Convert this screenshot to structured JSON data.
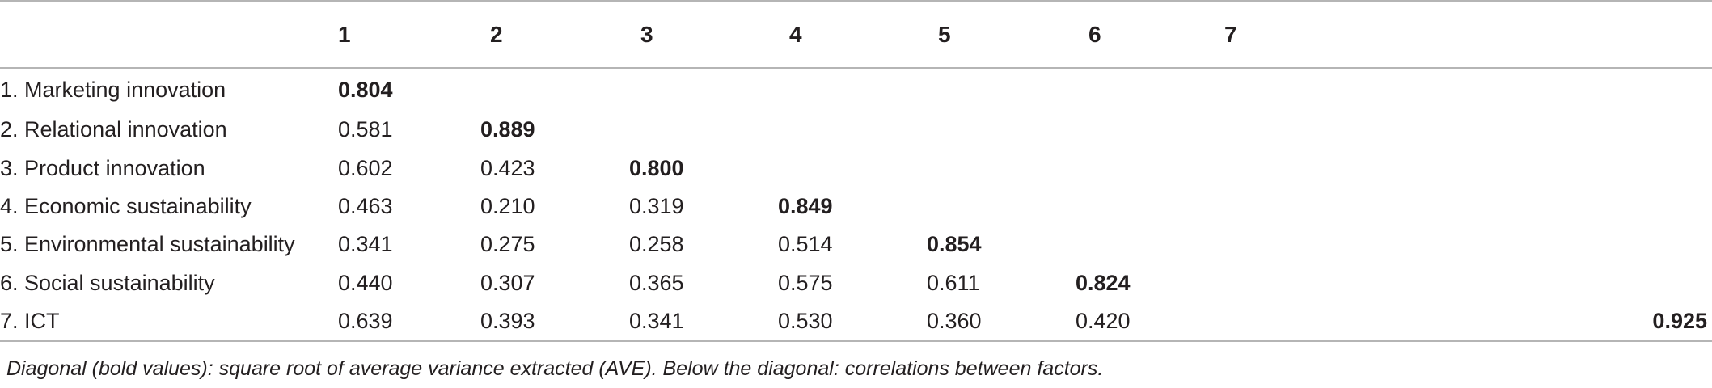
{
  "table": {
    "columns": [
      "1",
      "2",
      "3",
      "4",
      "5",
      "6",
      "7"
    ],
    "rows": [
      {
        "label": "1. Marketing innovation",
        "cells": [
          "0.804",
          "",
          "",
          "",
          "",
          "",
          ""
        ]
      },
      {
        "label": "2. Relational innovation",
        "cells": [
          "0.581",
          "0.889",
          "",
          "",
          "",
          "",
          ""
        ]
      },
      {
        "label": "3. Product innovation",
        "cells": [
          "0.602",
          "0.423",
          "0.800",
          "",
          "",
          "",
          ""
        ]
      },
      {
        "label": "4. Economic sustainability",
        "cells": [
          "0.463",
          "0.210",
          "0.319",
          "0.849",
          "",
          "",
          ""
        ]
      },
      {
        "label": "5. Environmental sustainability",
        "cells": [
          "0.341",
          "0.275",
          "0.258",
          "0.514",
          "0.854",
          "",
          ""
        ]
      },
      {
        "label": "6. Social sustainability",
        "cells": [
          "0.440",
          "0.307",
          "0.365",
          "0.575",
          "0.611",
          "0.824",
          ""
        ]
      },
      {
        "label": "7. ICT",
        "cells": [
          "0.639",
          "0.393",
          "0.341",
          "0.530",
          "0.360",
          "0.420",
          "0.925"
        ]
      }
    ],
    "bold_diagonal": true
  },
  "note": "Diagonal (bold values): square root of average variance extracted (AVE). Below the diagonal: correlations between factors."
}
